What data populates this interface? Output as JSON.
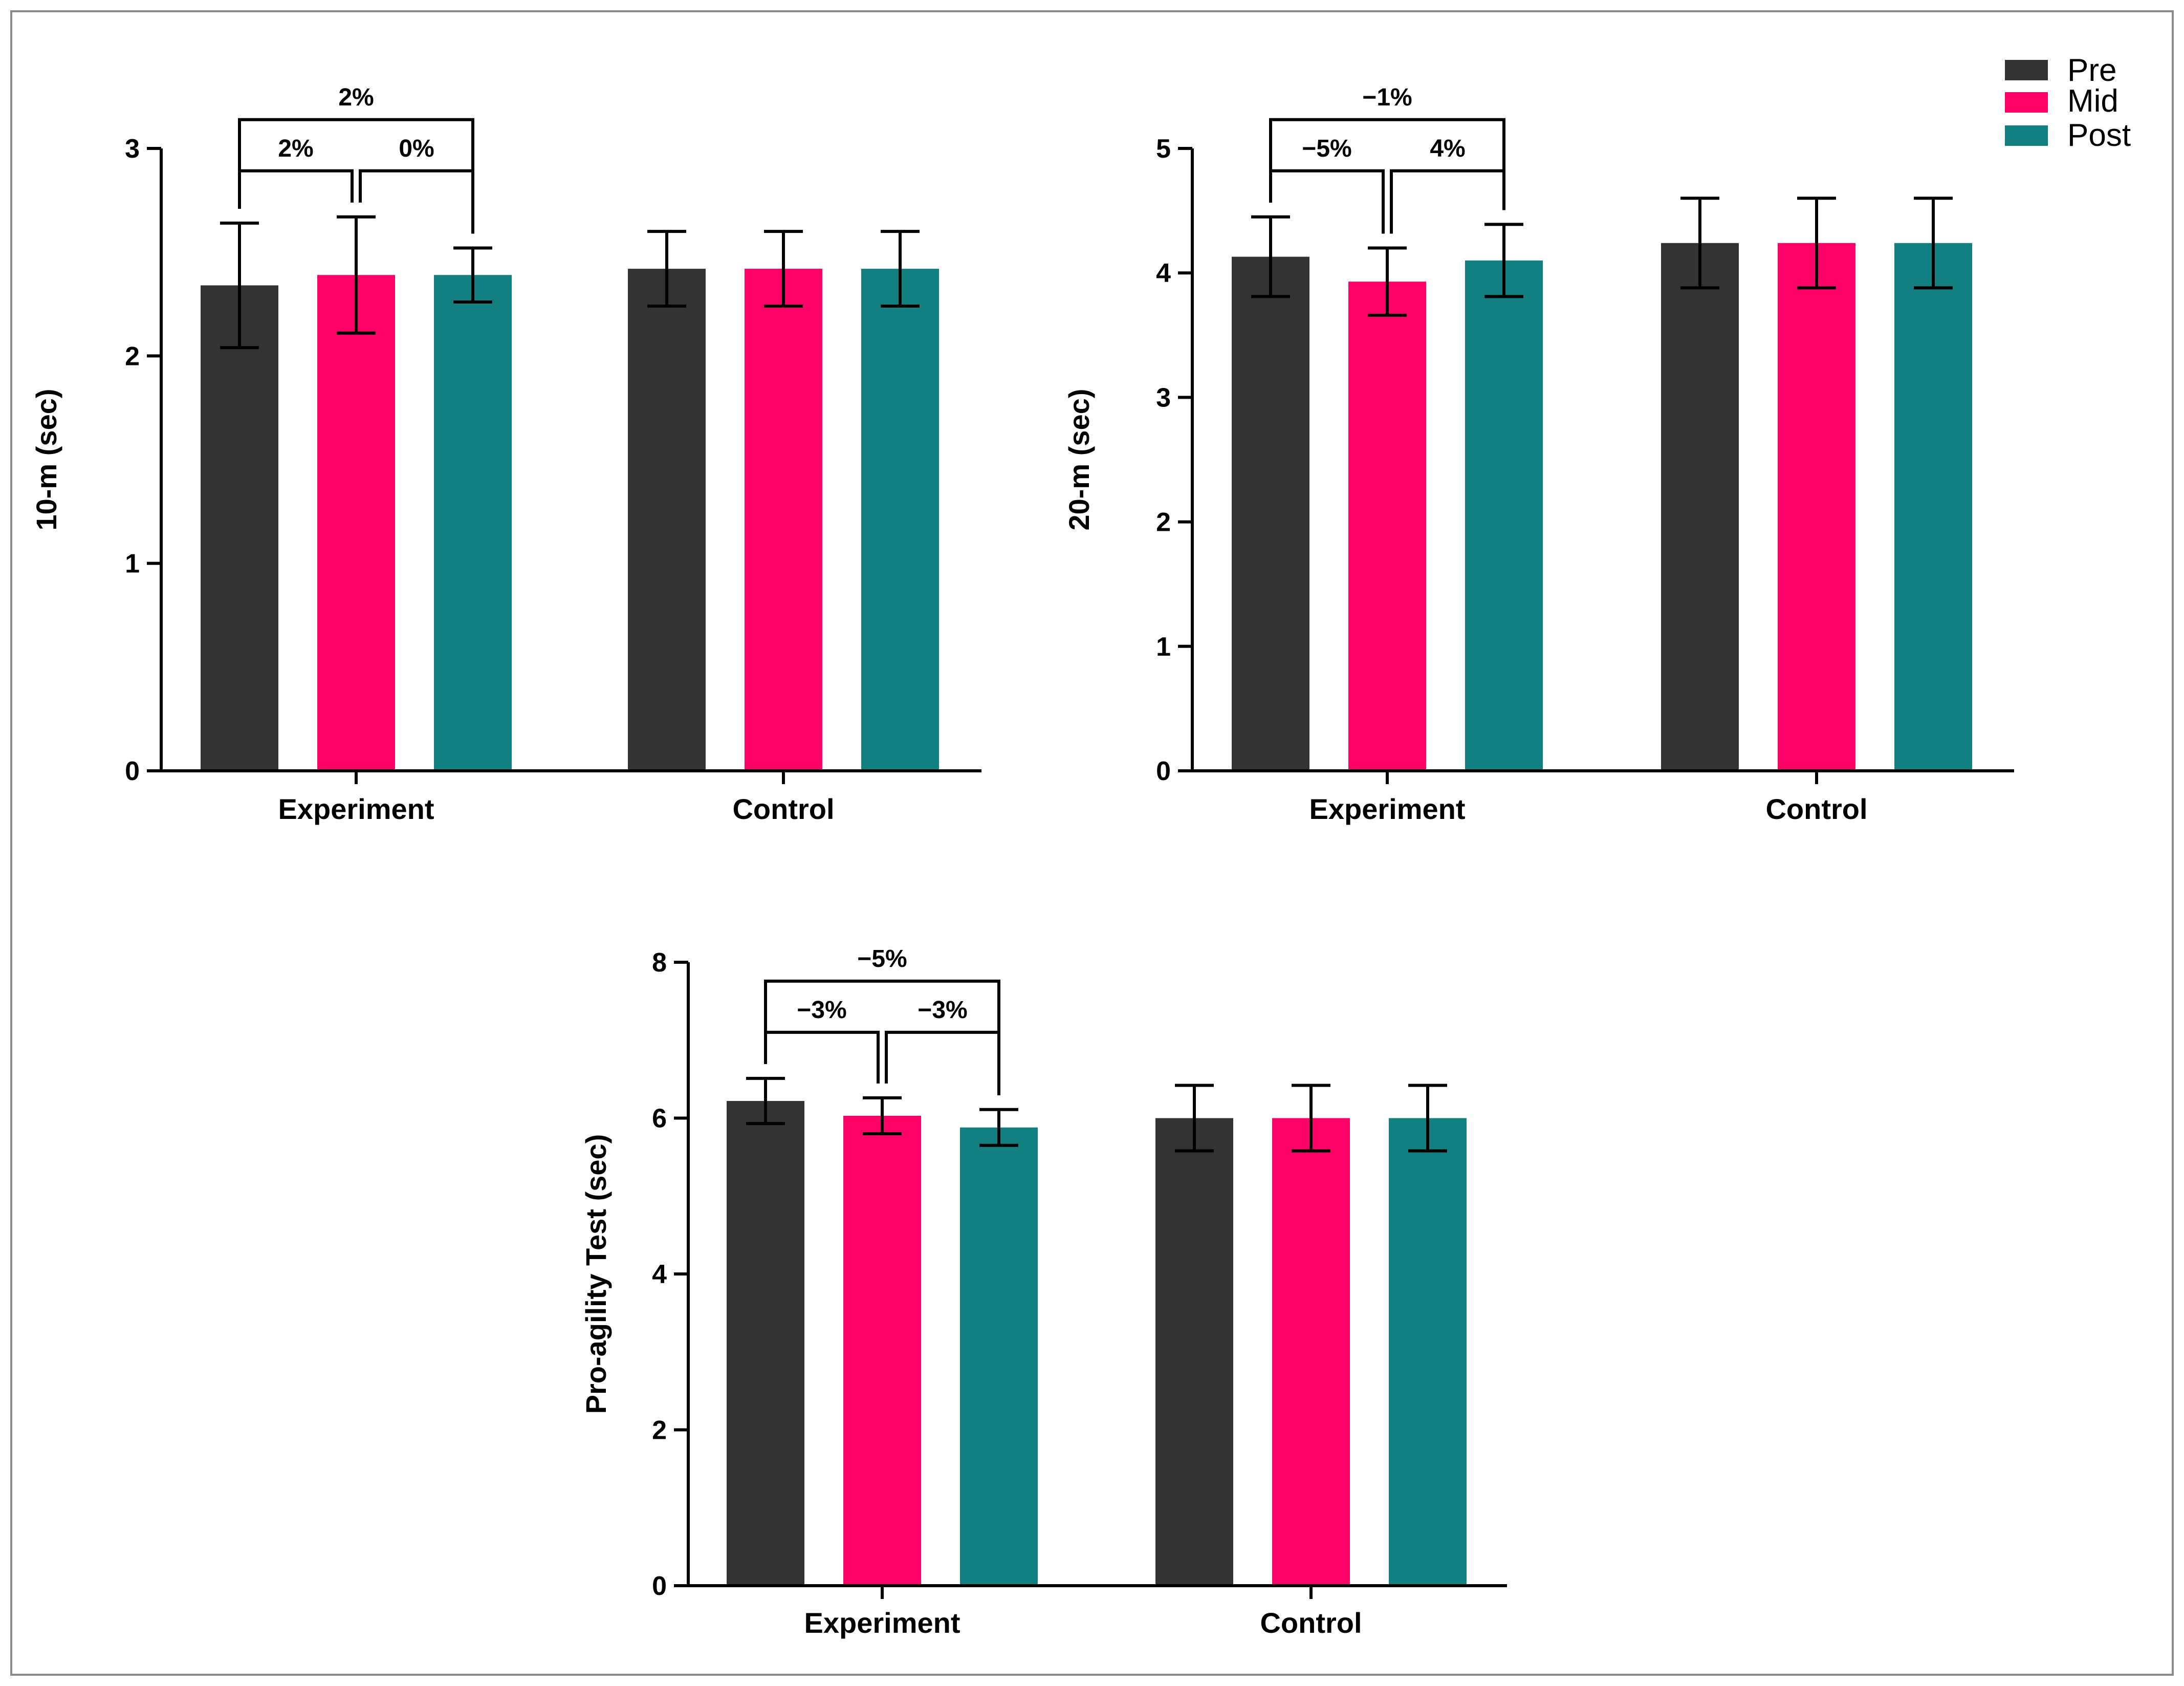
{
  "legend": [
    {
      "name": "Pre",
      "color": "#333333"
    },
    {
      "name": "Mid",
      "color": "#FF0066"
    },
    {
      "name": "Post",
      "color": "#128080"
    }
  ],
  "chart_data": [
    {
      "type": "bar",
      "ylabel": "10-m (sec)",
      "ylim": [
        0,
        3
      ],
      "yticks": [
        "0",
        "1",
        "2",
        "3"
      ],
      "categories": [
        "Experiment",
        "Control"
      ],
      "series": [
        {
          "name": "Pre",
          "values": [
            2.34,
            2.42
          ],
          "errors": [
            0.3,
            0.18
          ]
        },
        {
          "name": "Mid",
          "values": [
            2.39,
            2.42
          ],
          "errors": [
            0.28,
            0.18
          ]
        },
        {
          "name": "Post",
          "values": [
            2.39,
            2.42
          ],
          "errors": [
            0.13,
            0.18
          ]
        }
      ],
      "annotations": [
        {
          "from": 0,
          "to": 1,
          "label": "2%"
        },
        {
          "from": 1,
          "to": 2,
          "label": "0%"
        },
        {
          "from": 0,
          "to": 2,
          "label": "2%"
        }
      ]
    },
    {
      "type": "bar",
      "ylabel": "20-m (sec)",
      "ylim": [
        0,
        5
      ],
      "yticks": [
        "0",
        "1",
        "2",
        "3",
        "4",
        "5"
      ],
      "categories": [
        "Experiment",
        "Control"
      ],
      "series": [
        {
          "name": "Pre",
          "values": [
            4.13,
            4.24
          ],
          "errors": [
            0.32,
            0.36
          ]
        },
        {
          "name": "Mid",
          "values": [
            3.93,
            4.24
          ],
          "errors": [
            0.27,
            0.36
          ]
        },
        {
          "name": "Post",
          "values": [
            4.1,
            4.24
          ],
          "errors": [
            0.29,
            0.36
          ]
        }
      ],
      "annotations": [
        {
          "from": 0,
          "to": 1,
          "label": "−5%"
        },
        {
          "from": 1,
          "to": 2,
          "label": "4%"
        },
        {
          "from": 0,
          "to": 2,
          "label": "−1%"
        }
      ]
    },
    {
      "type": "bar",
      "ylabel": "Pro-agility Test (sec)",
      "ylim": [
        0,
        8
      ],
      "yticks": [
        "0",
        "2",
        "4",
        "6",
        "8"
      ],
      "categories": [
        "Experiment",
        "Control"
      ],
      "series": [
        {
          "name": "Pre",
          "values": [
            6.22,
            6.0
          ],
          "errors": [
            0.29,
            0.42
          ]
        },
        {
          "name": "Mid",
          "values": [
            6.03,
            6.0
          ],
          "errors": [
            0.23,
            0.42
          ]
        },
        {
          "name": "Post",
          "values": [
            5.88,
            6.0
          ],
          "errors": [
            0.23,
            0.42
          ]
        }
      ],
      "annotations": [
        {
          "from": 0,
          "to": 1,
          "label": "−3%"
        },
        {
          "from": 1,
          "to": 2,
          "label": "−3%"
        },
        {
          "from": 0,
          "to": 2,
          "label": "−5%"
        }
      ]
    }
  ]
}
